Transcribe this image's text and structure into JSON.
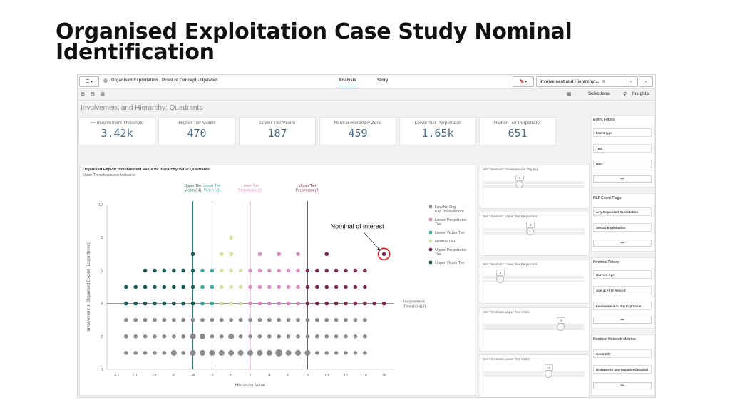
{
  "slide": {
    "title": "Organised Exploitation Case Study Nominal Identification"
  },
  "app": {
    "app_name": "Organised Exploitation - Proof of Concept - Updated",
    "tabs": [
      "Analysis",
      "Story"
    ],
    "sheet_selector": "Involvement and Hierarchy:...",
    "selections_label": "Selections",
    "insights_label": "Insights",
    "sheet_title": "Involvement and Hierarchy: Quadrants"
  },
  "kpis": [
    {
      "label": ">= Involvement Threshold",
      "value": "3.42k"
    },
    {
      "label": "Higher Tier Victim",
      "value": "470"
    },
    {
      "label": "Lower Tier Victim",
      "value": "187"
    },
    {
      "label": "Neutral Hierarchy Zone",
      "value": "459"
    },
    {
      "label": "Lower Tier Perpetrator",
      "value": "1.65k"
    },
    {
      "label": "Higher Tier Perpetrator",
      "value": "651"
    }
  ],
  "chart": {
    "title": "Organised Exploit: Involvement Value vs Hierarchy Value Quadrants",
    "subtitle": "Note: Thresholds are Inclusive",
    "xlabel": "Hierarchy Value",
    "ylabel": "Involvement in Organised Exploit (Logarithmic)",
    "annotation": "Nominal of interest",
    "threshold_label": "Involvement Threshold(4)",
    "vlines": [
      {
        "x": -4,
        "label": "Upper Tier Victim (-4)",
        "color": "#1a5f5a"
      },
      {
        "x": -2,
        "label": "Lower Tier Victim (-2)",
        "color": "#3aa6a0"
      },
      {
        "x": 2,
        "label": "Lower Tier Perpetrator (2)",
        "color": "#d98bc2"
      },
      {
        "x": 8,
        "label": "Upper Tier Perpetrator (8)",
        "color": "#7a2b54"
      }
    ],
    "legend": [
      {
        "label": "Low/No Org Exp Involvement",
        "color": "#8a8a8a"
      },
      {
        "label": "Lower Perpetrator Tier",
        "color": "#d98bc2"
      },
      {
        "label": "Lower Victim Tier",
        "color": "#3aa6a0"
      },
      {
        "label": "Neutral Tier",
        "color": "#d7dfa4"
      },
      {
        "label": "Upper Perpetrator Tier",
        "color": "#7a2b54"
      },
      {
        "label": "Upper Victim Tier",
        "color": "#175a56"
      }
    ]
  },
  "chart_data": {
    "type": "scatter",
    "xlim": [
      -13,
      17
    ],
    "ylim": [
      0,
      10
    ],
    "x_ticks": [
      -12,
      -10,
      -8,
      -6,
      -4,
      -2,
      0,
      2,
      4,
      6,
      8,
      10,
      12,
      14,
      16
    ],
    "y_ticks": [
      0,
      2,
      4,
      6,
      8,
      10
    ],
    "y_scale": "log",
    "grid": "horizontal at threshold only",
    "legend_placement": "right",
    "highlight_point": {
      "x": 16,
      "y": 7
    },
    "points": [
      {
        "x": -11,
        "y": 1,
        "c": "#8a8a8a"
      },
      {
        "x": -10,
        "y": 1,
        "c": "#8a8a8a"
      },
      {
        "x": -9,
        "y": 1,
        "c": "#8a8a8a"
      },
      {
        "x": -8,
        "y": 1,
        "c": "#8a8a8a"
      },
      {
        "x": -7,
        "y": 1,
        "c": "#8a8a8a"
      },
      {
        "x": -6,
        "y": 1,
        "c": "#8a8a8a",
        "s": 4
      },
      {
        "x": -5,
        "y": 1,
        "c": "#8a8a8a"
      },
      {
        "x": -4,
        "y": 1,
        "c": "#8a8a8a",
        "s": 4
      },
      {
        "x": -3,
        "y": 1,
        "c": "#8a8a8a",
        "s": 4
      },
      {
        "x": -2,
        "y": 1,
        "c": "#8a8a8a",
        "s": 4
      },
      {
        "x": -1,
        "y": 1,
        "c": "#8a8a8a",
        "s": 4
      },
      {
        "x": 0,
        "y": 1,
        "c": "#8a8a8a",
        "s": 4
      },
      {
        "x": 1,
        "y": 1,
        "c": "#8a8a8a",
        "s": 4
      },
      {
        "x": 2,
        "y": 1,
        "c": "#8a8a8a",
        "s": 4
      },
      {
        "x": 3,
        "y": 1,
        "c": "#8a8a8a",
        "s": 4
      },
      {
        "x": 4,
        "y": 1,
        "c": "#8a8a8a",
        "s": 4
      },
      {
        "x": 5,
        "y": 1,
        "c": "#8a8a8a",
        "s": 5
      },
      {
        "x": 6,
        "y": 1,
        "c": "#8a8a8a",
        "s": 4
      },
      {
        "x": 7,
        "y": 1,
        "c": "#8a8a8a",
        "s": 4
      },
      {
        "x": 8,
        "y": 1,
        "c": "#8a8a8a",
        "s": 4
      },
      {
        "x": 9,
        "y": 1,
        "c": "#8a8a8a"
      },
      {
        "x": 10,
        "y": 1,
        "c": "#8a8a8a"
      },
      {
        "x": 11,
        "y": 1,
        "c": "#8a8a8a"
      },
      {
        "x": 12,
        "y": 1,
        "c": "#8a8a8a"
      },
      {
        "x": 13,
        "y": 1,
        "c": "#8a8a8a"
      },
      {
        "x": 14,
        "y": 1,
        "c": "#8a8a8a"
      },
      {
        "x": -11,
        "y": 2,
        "c": "#8a8a8a"
      },
      {
        "x": -10,
        "y": 2,
        "c": "#8a8a8a"
      },
      {
        "x": -9,
        "y": 2,
        "c": "#8a8a8a"
      },
      {
        "x": -8,
        "y": 2,
        "c": "#8a8a8a"
      },
      {
        "x": -7,
        "y": 2,
        "c": "#8a8a8a"
      },
      {
        "x": -6,
        "y": 2,
        "c": "#8a8a8a"
      },
      {
        "x": -5,
        "y": 2,
        "c": "#8a8a8a"
      },
      {
        "x": -4,
        "y": 2,
        "c": "#8a8a8a",
        "s": 4
      },
      {
        "x": -3,
        "y": 2,
        "c": "#8a8a8a",
        "s": 4
      },
      {
        "x": -2,
        "y": 2,
        "c": "#8a8a8a"
      },
      {
        "x": -1,
        "y": 2,
        "c": "#8a8a8a"
      },
      {
        "x": 0,
        "y": 2,
        "c": "#8a8a8a",
        "s": 4
      },
      {
        "x": 1,
        "y": 2,
        "c": "#8a8a8a"
      },
      {
        "x": 2,
        "y": 2,
        "c": "#8a8a8a"
      },
      {
        "x": 3,
        "y": 2,
        "c": "#8a8a8a"
      },
      {
        "x": 4,
        "y": 2,
        "c": "#8a8a8a"
      },
      {
        "x": 5,
        "y": 2,
        "c": "#8a8a8a"
      },
      {
        "x": 6,
        "y": 2,
        "c": "#8a8a8a"
      },
      {
        "x": 7,
        "y": 2,
        "c": "#8a8a8a"
      },
      {
        "x": 8,
        "y": 2,
        "c": "#8a8a8a"
      },
      {
        "x": 9,
        "y": 2,
        "c": "#8a8a8a"
      },
      {
        "x": 10,
        "y": 2,
        "c": "#8a8a8a"
      },
      {
        "x": 11,
        "y": 2,
        "c": "#8a8a8a"
      },
      {
        "x": 12,
        "y": 2,
        "c": "#8a8a8a"
      },
      {
        "x": 13,
        "y": 2,
        "c": "#8a8a8a"
      },
      {
        "x": 14,
        "y": 2,
        "c": "#8a8a8a"
      },
      {
        "x": -11,
        "y": 3,
        "c": "#8a8a8a"
      },
      {
        "x": -10,
        "y": 3,
        "c": "#8a8a8a"
      },
      {
        "x": -9,
        "y": 3,
        "c": "#8a8a8a"
      },
      {
        "x": -8,
        "y": 3,
        "c": "#8a8a8a"
      },
      {
        "x": -7,
        "y": 3,
        "c": "#8a8a8a"
      },
      {
        "x": -6,
        "y": 3,
        "c": "#8a8a8a"
      },
      {
        "x": -5,
        "y": 3,
        "c": "#8a8a8a"
      },
      {
        "x": -4,
        "y": 3,
        "c": "#8a8a8a"
      },
      {
        "x": -3,
        "y": 3,
        "c": "#8a8a8a"
      },
      {
        "x": -2,
        "y": 3,
        "c": "#8a8a8a"
      },
      {
        "x": -1,
        "y": 3,
        "c": "#8a8a8a"
      },
      {
        "x": 0,
        "y": 3,
        "c": "#8a8a8a"
      },
      {
        "x": 1,
        "y": 3,
        "c": "#8a8a8a"
      },
      {
        "x": 2,
        "y": 3,
        "c": "#8a8a8a"
      },
      {
        "x": 3,
        "y": 3,
        "c": "#8a8a8a"
      },
      {
        "x": 4,
        "y": 3,
        "c": "#8a8a8a"
      },
      {
        "x": 5,
        "y": 3,
        "c": "#8a8a8a"
      },
      {
        "x": 6,
        "y": 3,
        "c": "#8a8a8a"
      },
      {
        "x": 7,
        "y": 3,
        "c": "#8a8a8a"
      },
      {
        "x": 8,
        "y": 3,
        "c": "#8a8a8a"
      },
      {
        "x": 9,
        "y": 3,
        "c": "#8a8a8a"
      },
      {
        "x": 10,
        "y": 3,
        "c": "#8a8a8a"
      },
      {
        "x": 11,
        "y": 3,
        "c": "#8a8a8a"
      },
      {
        "x": 12,
        "y": 3,
        "c": "#8a8a8a"
      },
      {
        "x": 13,
        "y": 3,
        "c": "#8a8a8a"
      },
      {
        "x": 14,
        "y": 3,
        "c": "#8a8a8a"
      },
      {
        "x": -11,
        "y": 4,
        "c": "#175a56"
      },
      {
        "x": -10,
        "y": 4,
        "c": "#175a56"
      },
      {
        "x": -9,
        "y": 4,
        "c": "#175a56"
      },
      {
        "x": -8,
        "y": 4,
        "c": "#175a56"
      },
      {
        "x": -7,
        "y": 4,
        "c": "#175a56"
      },
      {
        "x": -6,
        "y": 4,
        "c": "#175a56"
      },
      {
        "x": -5,
        "y": 4,
        "c": "#175a56"
      },
      {
        "x": -4,
        "y": 4,
        "c": "#175a56"
      },
      {
        "x": -3,
        "y": 4,
        "c": "#3aa6a0"
      },
      {
        "x": -2,
        "y": 4,
        "c": "#3aa6a0"
      },
      {
        "x": -1,
        "y": 4,
        "c": "#d7dfa4"
      },
      {
        "x": 0,
        "y": 4,
        "c": "#d7dfa4"
      },
      {
        "x": 1,
        "y": 4,
        "c": "#d7dfa4"
      },
      {
        "x": 2,
        "y": 4,
        "c": "#d98bc2"
      },
      {
        "x": 3,
        "y": 4,
        "c": "#d98bc2"
      },
      {
        "x": 4,
        "y": 4,
        "c": "#d98bc2"
      },
      {
        "x": 5,
        "y": 4,
        "c": "#d98bc2"
      },
      {
        "x": 6,
        "y": 4,
        "c": "#d98bc2"
      },
      {
        "x": 7,
        "y": 4,
        "c": "#d98bc2"
      },
      {
        "x": 8,
        "y": 4,
        "c": "#7a2b54"
      },
      {
        "x": 9,
        "y": 4,
        "c": "#7a2b54"
      },
      {
        "x": 10,
        "y": 4,
        "c": "#7a2b54"
      },
      {
        "x": 11,
        "y": 4,
        "c": "#7a2b54"
      },
      {
        "x": 12,
        "y": 4,
        "c": "#7a2b54"
      },
      {
        "x": 13,
        "y": 4,
        "c": "#7a2b54"
      },
      {
        "x": 14,
        "y": 4,
        "c": "#7a2b54"
      },
      {
        "x": 15,
        "y": 4,
        "c": "#7a2b54"
      },
      {
        "x": 16,
        "y": 4,
        "c": "#7a2b54"
      },
      {
        "x": -11,
        "y": 5,
        "c": "#175a56"
      },
      {
        "x": -10,
        "y": 5,
        "c": "#175a56"
      },
      {
        "x": -9,
        "y": 5,
        "c": "#175a56"
      },
      {
        "x": -8,
        "y": 5,
        "c": "#175a56"
      },
      {
        "x": -7,
        "y": 5,
        "c": "#175a56"
      },
      {
        "x": -6,
        "y": 5,
        "c": "#175a56"
      },
      {
        "x": -5,
        "y": 5,
        "c": "#175a56"
      },
      {
        "x": -4,
        "y": 5,
        "c": "#175a56"
      },
      {
        "x": -3,
        "y": 5,
        "c": "#3aa6a0"
      },
      {
        "x": -2,
        "y": 5,
        "c": "#3aa6a0"
      },
      {
        "x": -1,
        "y": 5,
        "c": "#d7dfa4"
      },
      {
        "x": 0,
        "y": 5,
        "c": "#d7dfa4"
      },
      {
        "x": 1,
        "y": 5,
        "c": "#d7dfa4"
      },
      {
        "x": 2,
        "y": 5,
        "c": "#d98bc2"
      },
      {
        "x": 3,
        "y": 5,
        "c": "#d98bc2"
      },
      {
        "x": 4,
        "y": 5,
        "c": "#d98bc2"
      },
      {
        "x": 5,
        "y": 5,
        "c": "#d98bc2"
      },
      {
        "x": 6,
        "y": 5,
        "c": "#d98bc2"
      },
      {
        "x": 7,
        "y": 5,
        "c": "#d98bc2"
      },
      {
        "x": 8,
        "y": 5,
        "c": "#7a2b54"
      },
      {
        "x": 9,
        "y": 5,
        "c": "#7a2b54"
      },
      {
        "x": 10,
        "y": 5,
        "c": "#7a2b54"
      },
      {
        "x": 11,
        "y": 5,
        "c": "#7a2b54"
      },
      {
        "x": 12,
        "y": 5,
        "c": "#7a2b54"
      },
      {
        "x": 13,
        "y": 5,
        "c": "#7a2b54"
      },
      {
        "x": 14,
        "y": 5,
        "c": "#7a2b54"
      },
      {
        "x": -9,
        "y": 6,
        "c": "#175a56"
      },
      {
        "x": -8,
        "y": 6,
        "c": "#175a56"
      },
      {
        "x": -7,
        "y": 6,
        "c": "#175a56"
      },
      {
        "x": -6,
        "y": 6,
        "c": "#175a56"
      },
      {
        "x": -5,
        "y": 6,
        "c": "#175a56"
      },
      {
        "x": -4,
        "y": 6,
        "c": "#175a56"
      },
      {
        "x": -3,
        "y": 6,
        "c": "#3aa6a0"
      },
      {
        "x": -2,
        "y": 6,
        "c": "#3aa6a0"
      },
      {
        "x": -1,
        "y": 6,
        "c": "#d7dfa4"
      },
      {
        "x": 0,
        "y": 6,
        "c": "#d7dfa4"
      },
      {
        "x": 1,
        "y": 6,
        "c": "#d7dfa4"
      },
      {
        "x": 2,
        "y": 6,
        "c": "#d98bc2"
      },
      {
        "x": 3,
        "y": 6,
        "c": "#d98bc2"
      },
      {
        "x": 4,
        "y": 6,
        "c": "#d98bc2"
      },
      {
        "x": 5,
        "y": 6,
        "c": "#d98bc2"
      },
      {
        "x": 6,
        "y": 6,
        "c": "#d98bc2"
      },
      {
        "x": 7,
        "y": 6,
        "c": "#d98bc2"
      },
      {
        "x": 8,
        "y": 6,
        "c": "#7a2b54"
      },
      {
        "x": 9,
        "y": 6,
        "c": "#7a2b54"
      },
      {
        "x": 10,
        "y": 6,
        "c": "#7a2b54"
      },
      {
        "x": 11,
        "y": 6,
        "c": "#7a2b54"
      },
      {
        "x": 12,
        "y": 6,
        "c": "#7a2b54"
      },
      {
        "x": 13,
        "y": 6,
        "c": "#7a2b54"
      },
      {
        "x": 14,
        "y": 6,
        "c": "#7a2b54"
      },
      {
        "x": -4,
        "y": 7,
        "c": "#175a56"
      },
      {
        "x": -1,
        "y": 7,
        "c": "#d7dfa4"
      },
      {
        "x": 0,
        "y": 7,
        "c": "#d7dfa4"
      },
      {
        "x": 3,
        "y": 7,
        "c": "#d98bc2"
      },
      {
        "x": 5,
        "y": 7,
        "c": "#d98bc2"
      },
      {
        "x": 7,
        "y": 7,
        "c": "#d98bc2"
      },
      {
        "x": 10,
        "y": 7,
        "c": "#7a2b54"
      },
      {
        "x": 16,
        "y": 7,
        "c": "#7a2b54"
      },
      {
        "x": 0,
        "y": 8,
        "c": "#d7dfa4"
      }
    ]
  },
  "sliders": [
    {
      "label": "Set Threshold: Involvement in Org Exp",
      "value": "4",
      "fraction": 0.35
    },
    {
      "label": "Set Threshold: Upper Tier Perpetrator",
      "value": "8",
      "fraction": 0.46
    },
    {
      "label": "Set Threshold: Lower Tier Perpetrator",
      "value": "2",
      "fraction": 0.16
    },
    {
      "label": "Set Threshold: Upper Tier Victim",
      "value": "-4",
      "fraction": 0.76
    },
    {
      "label": "Set Threshold: Lower Tier Victim",
      "value": "-2",
      "fraction": 0.64
    }
  ],
  "filters": [
    {
      "title": "Event Filters",
      "items": [
        "Event type",
        "Year",
        "NPU"
      ]
    },
    {
      "title": "NLP Event Flags",
      "items": [
        "Any Organised Exploitation",
        "Sexual Exploitation"
      ]
    },
    {
      "title": "Nominal Filters",
      "items": [
        "Current Age",
        "Age at First Record",
        "Involvement in Org Exp Value"
      ]
    },
    {
      "title": "Nominal Network Metrics",
      "items": [
        "Centrality",
        "Distance to any Organised Exploit"
      ]
    }
  ],
  "more_label": "•••"
}
